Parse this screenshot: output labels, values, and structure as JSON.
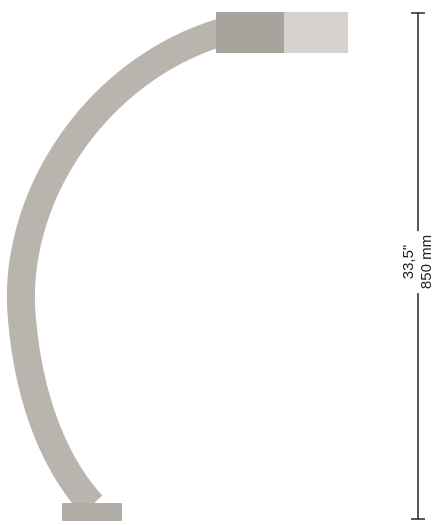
{
  "colors": {
    "arm": "#b9b4ae",
    "head_dark": "#a9a39d",
    "head_light": "#d6d2cd",
    "base": "#b1aca6",
    "dimension_line": "#222222"
  },
  "dimension": {
    "inches": "33,5\"",
    "millimeters": "850 mm"
  }
}
